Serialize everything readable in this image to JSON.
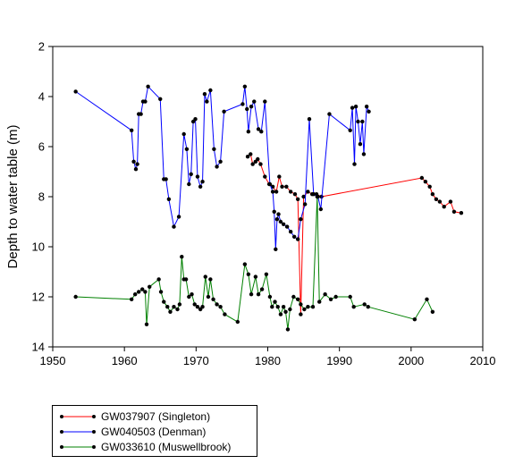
{
  "chart_data": {
    "type": "line",
    "title": "",
    "xlabel": "",
    "ylabel": "Depth to water table (m)",
    "xlim": [
      1950,
      2010
    ],
    "ylim": [
      2,
      14
    ],
    "y_inverted": true,
    "xticks": [
      "1950",
      "1960",
      "1970",
      "1980",
      "1990",
      "2000",
      "2010"
    ],
    "yticks": [
      "2",
      "4",
      "6",
      "8",
      "10",
      "12",
      "14"
    ],
    "grid": false,
    "legend_position": "bottom-left, below plot",
    "series": [
      {
        "name": "GW037907 (Singleton)",
        "color": "#ff0000",
        "points": [
          [
            1977.2,
            6.4
          ],
          [
            1977.6,
            6.3
          ],
          [
            1977.9,
            6.7
          ],
          [
            1978.3,
            6.6
          ],
          [
            1978.6,
            6.5
          ],
          [
            1979.0,
            6.7
          ],
          [
            1979.6,
            7.2
          ],
          [
            1980.2,
            7.5
          ],
          [
            1980.7,
            7.6
          ],
          [
            1981.2,
            7.8
          ],
          [
            1981.6,
            7.2
          ],
          [
            1982.0,
            7.6
          ],
          [
            1982.6,
            7.6
          ],
          [
            1983.2,
            7.8
          ],
          [
            1983.8,
            7.9
          ],
          [
            1984.2,
            8.1
          ],
          [
            1984.6,
            12.7
          ],
          [
            1985.0,
            8.0
          ],
          [
            1985.6,
            7.8
          ],
          [
            1986.2,
            7.9
          ],
          [
            1986.8,
            7.9
          ],
          [
            1987.5,
            8.0
          ],
          [
            2001.5,
            7.25
          ],
          [
            2002.0,
            7.4
          ],
          [
            2002.6,
            7.6
          ],
          [
            2003.0,
            7.9
          ],
          [
            2003.5,
            8.1
          ],
          [
            2004.0,
            8.2
          ],
          [
            2004.6,
            8.4
          ],
          [
            2005.5,
            8.2
          ],
          [
            2006.0,
            8.6
          ],
          [
            2007.0,
            8.65
          ]
        ]
      },
      {
        "name": "GW040503 (Denman)",
        "color": "#0000ff",
        "points": [
          [
            1953.2,
            3.8
          ],
          [
            1961.0,
            5.35
          ],
          [
            1961.3,
            6.6
          ],
          [
            1961.6,
            6.9
          ],
          [
            1961.8,
            6.7
          ],
          [
            1962.0,
            4.7
          ],
          [
            1962.3,
            4.7
          ],
          [
            1962.6,
            4.2
          ],
          [
            1962.9,
            4.2
          ],
          [
            1963.3,
            3.6
          ],
          [
            1965.0,
            4.1
          ],
          [
            1965.5,
            7.3
          ],
          [
            1965.8,
            7.3
          ],
          [
            1966.2,
            8.1
          ],
          [
            1966.9,
            9.2
          ],
          [
            1967.6,
            8.8
          ],
          [
            1968.3,
            5.5
          ],
          [
            1968.7,
            6.1
          ],
          [
            1969.0,
            7.5
          ],
          [
            1969.3,
            7.1
          ],
          [
            1969.6,
            5.0
          ],
          [
            1969.9,
            4.9
          ],
          [
            1970.2,
            7.2
          ],
          [
            1970.6,
            7.6
          ],
          [
            1970.9,
            7.4
          ],
          [
            1971.2,
            3.9
          ],
          [
            1971.5,
            4.2
          ],
          [
            1972.0,
            3.75
          ],
          [
            1972.5,
            6.1
          ],
          [
            1972.9,
            6.8
          ],
          [
            1973.4,
            6.6
          ],
          [
            1973.9,
            4.6
          ],
          [
            1976.5,
            4.3
          ],
          [
            1976.8,
            3.6
          ],
          [
            1977.1,
            4.5
          ],
          [
            1977.3,
            5.4
          ],
          [
            1977.7,
            4.4
          ],
          [
            1978.1,
            4.2
          ],
          [
            1978.7,
            5.3
          ],
          [
            1979.1,
            5.4
          ],
          [
            1979.6,
            4.2
          ],
          [
            1980.3,
            7.5
          ],
          [
            1980.7,
            7.8
          ],
          [
            1980.9,
            8.6
          ],
          [
            1981.1,
            10.1
          ],
          [
            1981.3,
            8.9
          ],
          [
            1981.5,
            8.7
          ],
          [
            1981.8,
            9.0
          ],
          [
            1982.2,
            9.1
          ],
          [
            1982.7,
            9.2
          ],
          [
            1983.2,
            9.4
          ],
          [
            1983.7,
            9.6
          ],
          [
            1984.2,
            9.7
          ],
          [
            1984.6,
            8.9
          ],
          [
            1985.2,
            8.3
          ],
          [
            1985.8,
            4.9
          ],
          [
            1986.4,
            7.9
          ],
          [
            1987.0,
            8.0
          ],
          [
            1987.4,
            8.5
          ],
          [
            1988.6,
            4.7
          ],
          [
            1991.5,
            5.35
          ],
          [
            1991.8,
            4.45
          ],
          [
            1992.1,
            6.7
          ],
          [
            1992.3,
            4.4
          ],
          [
            1992.6,
            5.0
          ],
          [
            1992.9,
            5.9
          ],
          [
            1993.2,
            5.0
          ],
          [
            1993.4,
            6.3
          ],
          [
            1993.8,
            4.4
          ],
          [
            1994.1,
            4.6
          ]
        ]
      },
      {
        "name": "GW033610 (Muswellbrook)",
        "color": "#008000",
        "points": [
          [
            1953.2,
            12.0
          ],
          [
            1961.0,
            12.1
          ],
          [
            1961.5,
            11.9
          ],
          [
            1962.0,
            11.8
          ],
          [
            1962.5,
            11.7
          ],
          [
            1962.9,
            11.8
          ],
          [
            1963.1,
            13.1
          ],
          [
            1963.5,
            11.6
          ],
          [
            1964.8,
            11.3
          ],
          [
            1965.1,
            11.8
          ],
          [
            1965.5,
            12.2
          ],
          [
            1966.0,
            12.4
          ],
          [
            1966.4,
            12.6
          ],
          [
            1966.9,
            12.4
          ],
          [
            1967.4,
            12.5
          ],
          [
            1967.7,
            12.3
          ],
          [
            1968.0,
            10.4
          ],
          [
            1968.3,
            11.3
          ],
          [
            1968.6,
            11.3
          ],
          [
            1969.0,
            12.0
          ],
          [
            1969.4,
            11.9
          ],
          [
            1969.8,
            12.3
          ],
          [
            1970.2,
            12.4
          ],
          [
            1970.6,
            12.5
          ],
          [
            1970.9,
            12.4
          ],
          [
            1971.3,
            11.2
          ],
          [
            1971.7,
            12.0
          ],
          [
            1972.0,
            11.3
          ],
          [
            1972.4,
            12.1
          ],
          [
            1972.9,
            12.3
          ],
          [
            1973.4,
            12.4
          ],
          [
            1974.0,
            12.7
          ],
          [
            1975.8,
            13.0
          ],
          [
            1976.8,
            10.7
          ],
          [
            1977.3,
            11.1
          ],
          [
            1977.7,
            11.9
          ],
          [
            1978.3,
            11.2
          ],
          [
            1978.7,
            11.9
          ],
          [
            1979.2,
            11.7
          ],
          [
            1979.8,
            11.1
          ],
          [
            1980.3,
            12.0
          ],
          [
            1980.6,
            12.4
          ],
          [
            1981.0,
            12.2
          ],
          [
            1981.4,
            12.4
          ],
          [
            1981.8,
            12.7
          ],
          [
            1982.2,
            12.4
          ],
          [
            1982.5,
            12.6
          ],
          [
            1982.8,
            13.3
          ],
          [
            1983.1,
            12.5
          ],
          [
            1983.6,
            12.0
          ],
          [
            1984.2,
            12.1
          ],
          [
            1984.6,
            12.3
          ],
          [
            1985.1,
            12.5
          ],
          [
            1985.6,
            12.4
          ],
          [
            1986.3,
            12.4
          ],
          [
            1986.9,
            8.0
          ],
          [
            1987.2,
            12.2
          ],
          [
            1988.0,
            11.9
          ],
          [
            1988.8,
            12.1
          ],
          [
            1989.5,
            12.0
          ],
          [
            1991.5,
            12.0
          ],
          [
            1992.0,
            12.4
          ],
          [
            1993.5,
            12.3
          ],
          [
            1994.0,
            12.4
          ],
          [
            2000.5,
            12.9
          ],
          [
            2002.2,
            12.1
          ],
          [
            2003.0,
            12.6
          ]
        ]
      }
    ]
  }
}
